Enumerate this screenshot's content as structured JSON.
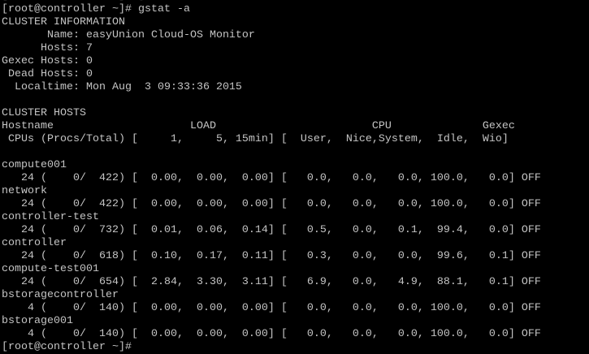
{
  "terminal": {
    "colors": {
      "background": "#000000",
      "foreground": "#c4c4c4",
      "scrollback_fragment": "#3a3a3a"
    },
    "prompt": "[root@controller ~]#",
    "command": "gstat -a",
    "scrollback_fragment": "[root@controller ~]# gstat -a",
    "cluster_information": {
      "section_title": "CLUSTER INFORMATION",
      "fields": [
        {
          "label": "Name",
          "value": "easyUnion Cloud-OS Monitor"
        },
        {
          "label": "Hosts",
          "value": "7"
        },
        {
          "label": "Gexec Hosts",
          "value": "0"
        },
        {
          "label": "Dead Hosts",
          "value": "0"
        },
        {
          "label": "Localtime",
          "value": "Mon Aug  3 09:33:36 2015"
        }
      ]
    },
    "cluster_hosts": {
      "section_title": "CLUSTER HOSTS",
      "header_groups": [
        "Hostname",
        "LOAD",
        "CPU",
        "Gexec"
      ],
      "subheader_prefix": "CPUs (Procs/Total)",
      "load_columns": [
        "1",
        "5",
        "15min"
      ],
      "cpu_columns": [
        "User",
        "Nice",
        "System",
        "Idle",
        "Wio"
      ],
      "hosts": [
        {
          "hostname": "compute001",
          "cpus": 24,
          "procs_run": 0,
          "procs_total": 422,
          "load_1": "0.00",
          "load_5": "0.00",
          "load_15": "0.00",
          "cpu_user": "0.0",
          "cpu_nice": "0.0",
          "cpu_system": "0.0",
          "cpu_idle": "100.0",
          "cpu_wio": "0.0",
          "gexec": "OFF"
        },
        {
          "hostname": "network",
          "cpus": 24,
          "procs_run": 0,
          "procs_total": 422,
          "load_1": "0.00",
          "load_5": "0.00",
          "load_15": "0.00",
          "cpu_user": "0.0",
          "cpu_nice": "0.0",
          "cpu_system": "0.0",
          "cpu_idle": "100.0",
          "cpu_wio": "0.0",
          "gexec": "OFF"
        },
        {
          "hostname": "controller-test",
          "cpus": 24,
          "procs_run": 0,
          "procs_total": 732,
          "load_1": "0.01",
          "load_5": "0.06",
          "load_15": "0.14",
          "cpu_user": "0.5",
          "cpu_nice": "0.0",
          "cpu_system": "0.1",
          "cpu_idle": "99.4",
          "cpu_wio": "0.0",
          "gexec": "OFF"
        },
        {
          "hostname": "controller",
          "cpus": 24,
          "procs_run": 0,
          "procs_total": 618,
          "load_1": "0.10",
          "load_5": "0.17",
          "load_15": "0.11",
          "cpu_user": "0.3",
          "cpu_nice": "0.0",
          "cpu_system": "0.0",
          "cpu_idle": "99.6",
          "cpu_wio": "0.1",
          "gexec": "OFF"
        },
        {
          "hostname": "compute-test001",
          "cpus": 24,
          "procs_run": 0,
          "procs_total": 654,
          "load_1": "2.84",
          "load_5": "3.30",
          "load_15": "3.11",
          "cpu_user": "6.9",
          "cpu_nice": "0.0",
          "cpu_system": "4.9",
          "cpu_idle": "88.1",
          "cpu_wio": "0.1",
          "gexec": "OFF"
        },
        {
          "hostname": "bstoragecontroller",
          "cpus": 4,
          "procs_run": 0,
          "procs_total": 140,
          "load_1": "0.00",
          "load_5": "0.00",
          "load_15": "0.00",
          "cpu_user": "0.0",
          "cpu_nice": "0.0",
          "cpu_system": "0.0",
          "cpu_idle": "100.0",
          "cpu_wio": "0.0",
          "gexec": "OFF"
        },
        {
          "hostname": "bstorage001",
          "cpus": 4,
          "procs_run": 0,
          "procs_total": 140,
          "load_1": "0.00",
          "load_5": "0.00",
          "load_15": "0.00",
          "cpu_user": "0.0",
          "cpu_nice": "0.0",
          "cpu_system": "0.0",
          "cpu_idle": "100.0",
          "cpu_wio": "0.0",
          "gexec": "OFF"
        }
      ]
    },
    "trailing_prompt": "[root@controller ~]#"
  }
}
